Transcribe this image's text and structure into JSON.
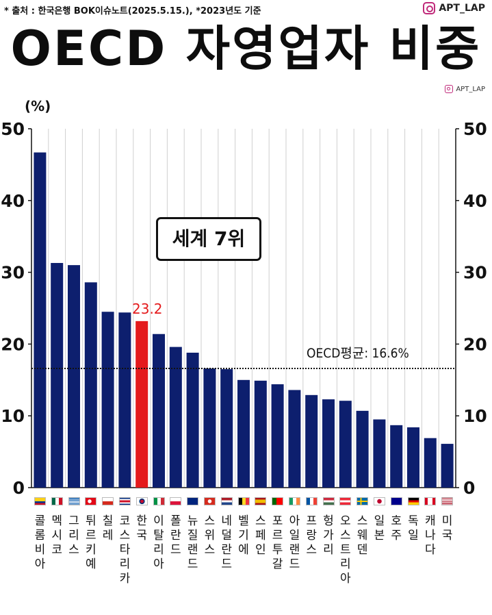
{
  "header": {
    "source": "* 출처 : 한국은행 BOK이슈노트(2025.5.15.), *2023년도 기준",
    "handle": "APT_LAP",
    "title": "OECD 자영업자 비중",
    "handle_small": "APT_LAP"
  },
  "annotations": {
    "badge": "세계 7위",
    "avg_label": "OECD평균: 16.6%",
    "highlight_value": "23.2"
  },
  "colors": {
    "bar": "#0d1f6e",
    "highlight": "#e41a1c",
    "grid": "#cfcfcf",
    "axis": "#111111"
  },
  "chart_data": {
    "type": "bar",
    "title": "OECD 자영업자 비중",
    "ylabel": "(%)",
    "ylim": [
      0,
      50
    ],
    "yticks": [
      0,
      10,
      20,
      30,
      40,
      50
    ],
    "secondary_y_axis": true,
    "grid": "vertical",
    "categories": [
      "콜롬비아",
      "멕시코",
      "그리스",
      "튀르키예",
      "칠레",
      "코스타리카",
      "한국",
      "이탈리아",
      "폴란드",
      "뉴질랜드",
      "스위스",
      "네덜란드",
      "벨기에",
      "스페인",
      "포르투갈",
      "아일랜드",
      "프랑스",
      "헝가리",
      "오스트리아",
      "스웨덴",
      "일본",
      "호주",
      "독일",
      "캐나다",
      "미국"
    ],
    "values": [
      46.7,
      31.3,
      31.0,
      28.6,
      24.5,
      24.4,
      23.2,
      21.4,
      19.6,
      18.8,
      16.6,
      16.5,
      15.0,
      14.9,
      14.4,
      13.6,
      12.9,
      12.3,
      12.1,
      10.7,
      9.5,
      8.7,
      8.4,
      6.9,
      6.1
    ],
    "highlight_index": 6,
    "highlight_label": "23.2",
    "reference_line": {
      "value": 16.6,
      "label": "OECD평균: 16.6%",
      "style": "dotted"
    },
    "flags": [
      "colombia",
      "mexico",
      "greece",
      "turkey",
      "chile",
      "costa-rica",
      "korea",
      "italy",
      "poland",
      "new-zealand",
      "switzerland",
      "netherlands",
      "belgium",
      "spain",
      "portugal",
      "ireland",
      "france",
      "hungary",
      "austria",
      "sweden",
      "japan",
      "australia",
      "germany",
      "canada",
      "usa"
    ]
  }
}
